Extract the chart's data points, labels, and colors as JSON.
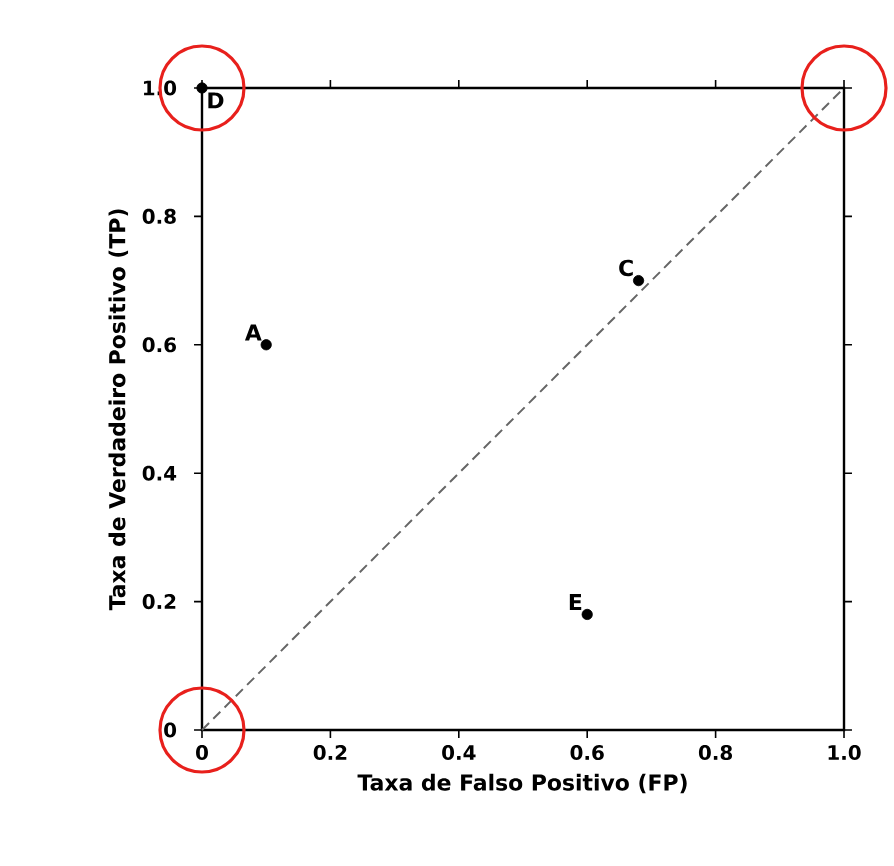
{
  "chart_data": {
    "type": "scatter",
    "xlabel": "Taxa de Falso Positivo (FP)",
    "ylabel": "Taxa de Verdadeiro Positivo (TP)",
    "xlim": [
      0,
      1
    ],
    "ylim": [
      0,
      1
    ],
    "xticks": [
      {
        "value": 0,
        "label": "0"
      },
      0.2,
      0.4,
      0.6,
      0.8,
      {
        "value": 1,
        "label": "1.0"
      }
    ],
    "yticks": [
      {
        "value": 0,
        "label": "0"
      },
      0.2,
      0.4,
      0.6,
      0.8,
      {
        "value": 1,
        "label": "1.0"
      }
    ],
    "series": [
      {
        "type": "line",
        "color": "#666666",
        "line_style": "dashed",
        "marker": "none",
        "x": [
          0,
          1
        ],
        "values": [
          0,
          1
        ]
      },
      {
        "color": "#000000",
        "marker": "circle",
        "x": [
          0.1,
          0.68,
          0,
          0.6
        ],
        "values": [
          0.6,
          0.7,
          1,
          0.18
        ]
      },
      {
        "color": "#e8201c",
        "marker": "circle",
        "x": [
          0,
          0,
          1
        ],
        "values": [
          0,
          1,
          1
        ]
      }
    ],
    "annotations": [
      {
        "text": "A",
        "x": 0.1,
        "y": 0.6
      },
      {
        "text": "C",
        "x": 0.68,
        "y": 0.7
      },
      {
        "text": "D",
        "x": 0,
        "y": 1
      },
      {
        "text": "E",
        "x": 0.6,
        "y": 0.18
      }
    ]
  }
}
